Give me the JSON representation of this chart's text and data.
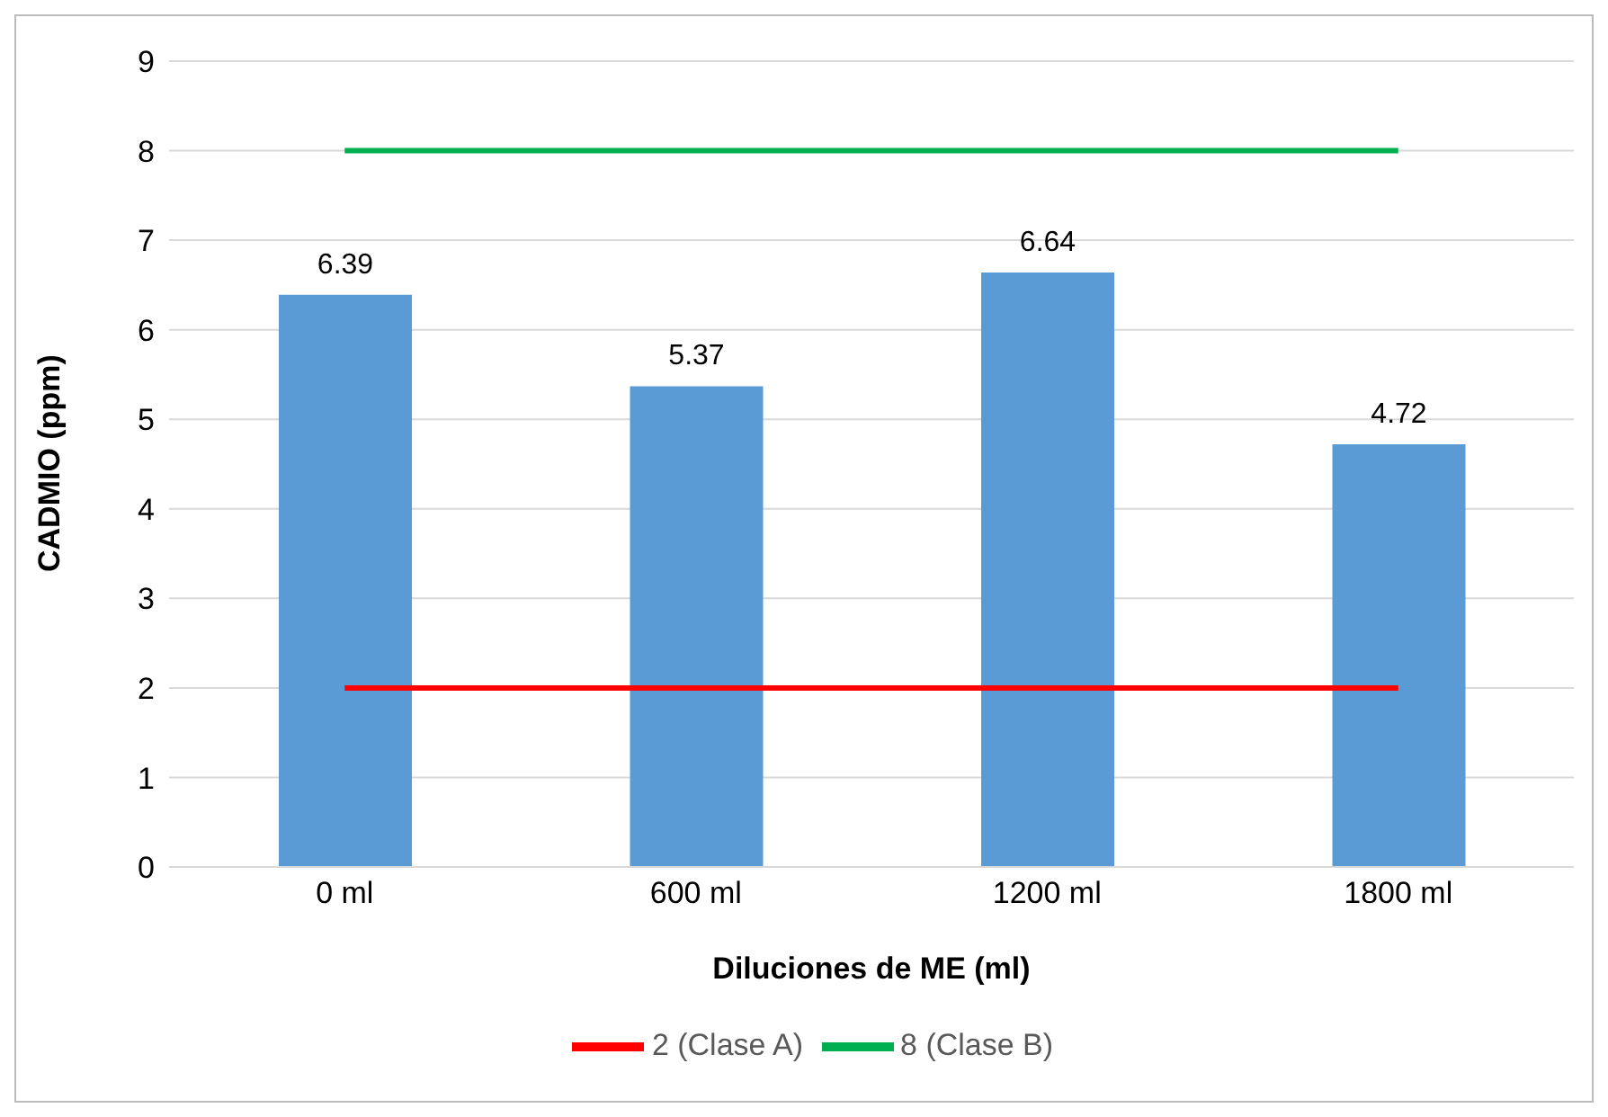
{
  "chart_data": {
    "type": "bar",
    "xlabel": "Diluciones de ME (ml)",
    "ylabel": "CADMIO (ppm)",
    "categories": [
      "0 ml",
      "600 ml",
      "1200 ml",
      "1800 ml"
    ],
    "series": [
      {
        "color": "#5b9bd5",
        "values": [
          6.39,
          5.37,
          6.64,
          4.72
        ],
        "value_labels": [
          "6.39",
          "5.37",
          "6.64",
          "4.72"
        ]
      },
      {
        "type": "line",
        "name": "2 (Clase A)",
        "color": "#ff0000",
        "values": [
          2,
          2,
          2,
          2
        ]
      },
      {
        "type": "line",
        "name": "8 (Clase B)",
        "color": "#00b050",
        "values": [
          8,
          8,
          8,
          8
        ]
      }
    ],
    "ylim": [
      0,
      9
    ],
    "yticks": [
      0,
      1,
      2,
      3,
      4,
      5,
      6,
      7,
      8,
      9
    ],
    "grid": "y",
    "legend": "bottom",
    "marker": "none",
    "line_style": "solid"
  }
}
